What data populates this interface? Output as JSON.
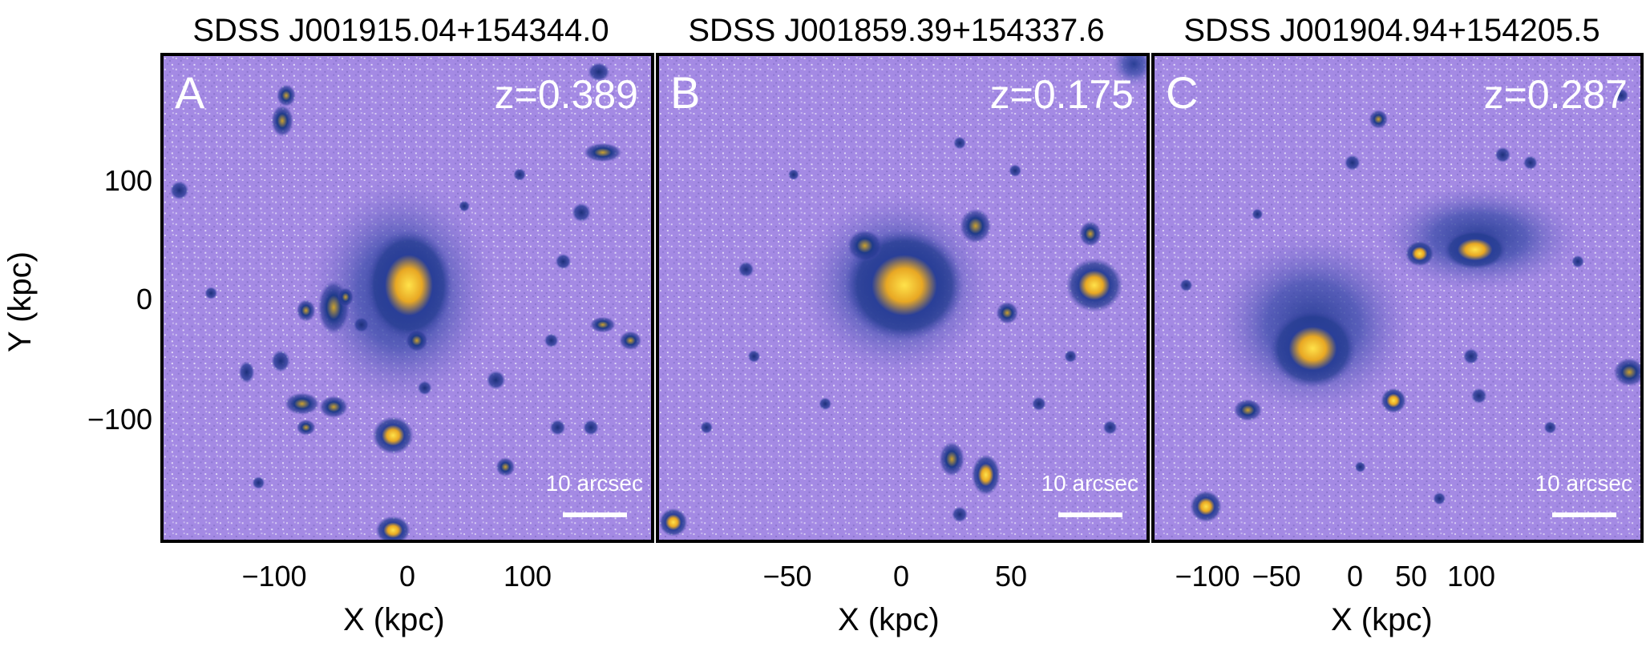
{
  "panels": [
    {
      "title": "SDSS J001915.04+154344.0",
      "letter": "A",
      "redshift": "z=0.389",
      "scale_label": "10 arcsec",
      "xticks": [
        "−100",
        "0",
        "100"
      ],
      "xlabel": "X (kpc)"
    },
    {
      "title": "SDSS J001859.39+154337.6",
      "letter": "B",
      "redshift": "z=0.175",
      "scale_label": "10 arcsec",
      "xticks": [
        "−50",
        "0",
        "50"
      ],
      "xlabel": "X (kpc)"
    },
    {
      "title": "SDSS J001904.94+154205.5",
      "letter": "C",
      "redshift": "z=0.287",
      "scale_label": "10 arcsec",
      "xticks": [
        "−100",
        "−50",
        "0",
        "50",
        "100"
      ],
      "xlabel": "X (kpc)"
    }
  ],
  "yaxis": {
    "label": "Y (kpc)",
    "ticks": [
      "100",
      "0",
      "−100"
    ]
  },
  "colors": {
    "background": "#a88ae6",
    "galaxy_outer": "#1c3a8c",
    "galaxy_core": "#f2c21a"
  }
}
